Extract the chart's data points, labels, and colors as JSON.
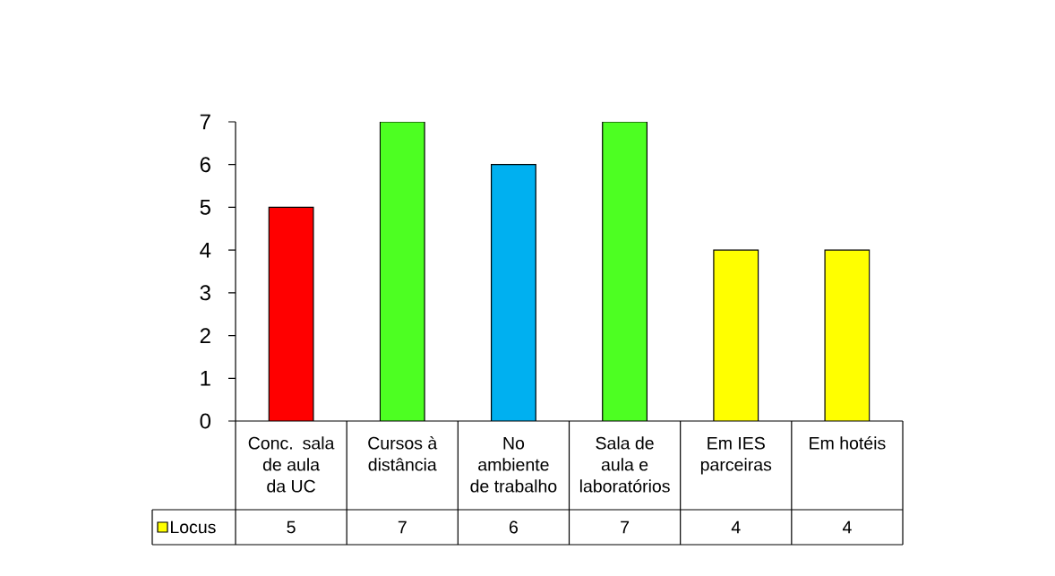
{
  "chart_data": {
    "type": "bar",
    "categories": [
      "Conc. sala de aula da UC",
      "Cursos à distância",
      "No ambiente de trabalho",
      "Sala de aula e laboratórios",
      "Em IES parceiras",
      "Em hotéis"
    ],
    "series": [
      {
        "name": "Locus",
        "color": "#ffff00",
        "colors": [
          "#ff0000",
          "#4dff22",
          "#00b0f0",
          "#4dff22",
          "#ffff00",
          "#ffff00"
        ],
        "values": [
          5,
          7,
          6,
          7,
          4,
          4
        ]
      }
    ],
    "ylim": [
      0,
      7
    ],
    "yticks": [
      0,
      1,
      2,
      3,
      4,
      5,
      6,
      7
    ],
    "data_labels": true,
    "legend": "bottom left"
  }
}
